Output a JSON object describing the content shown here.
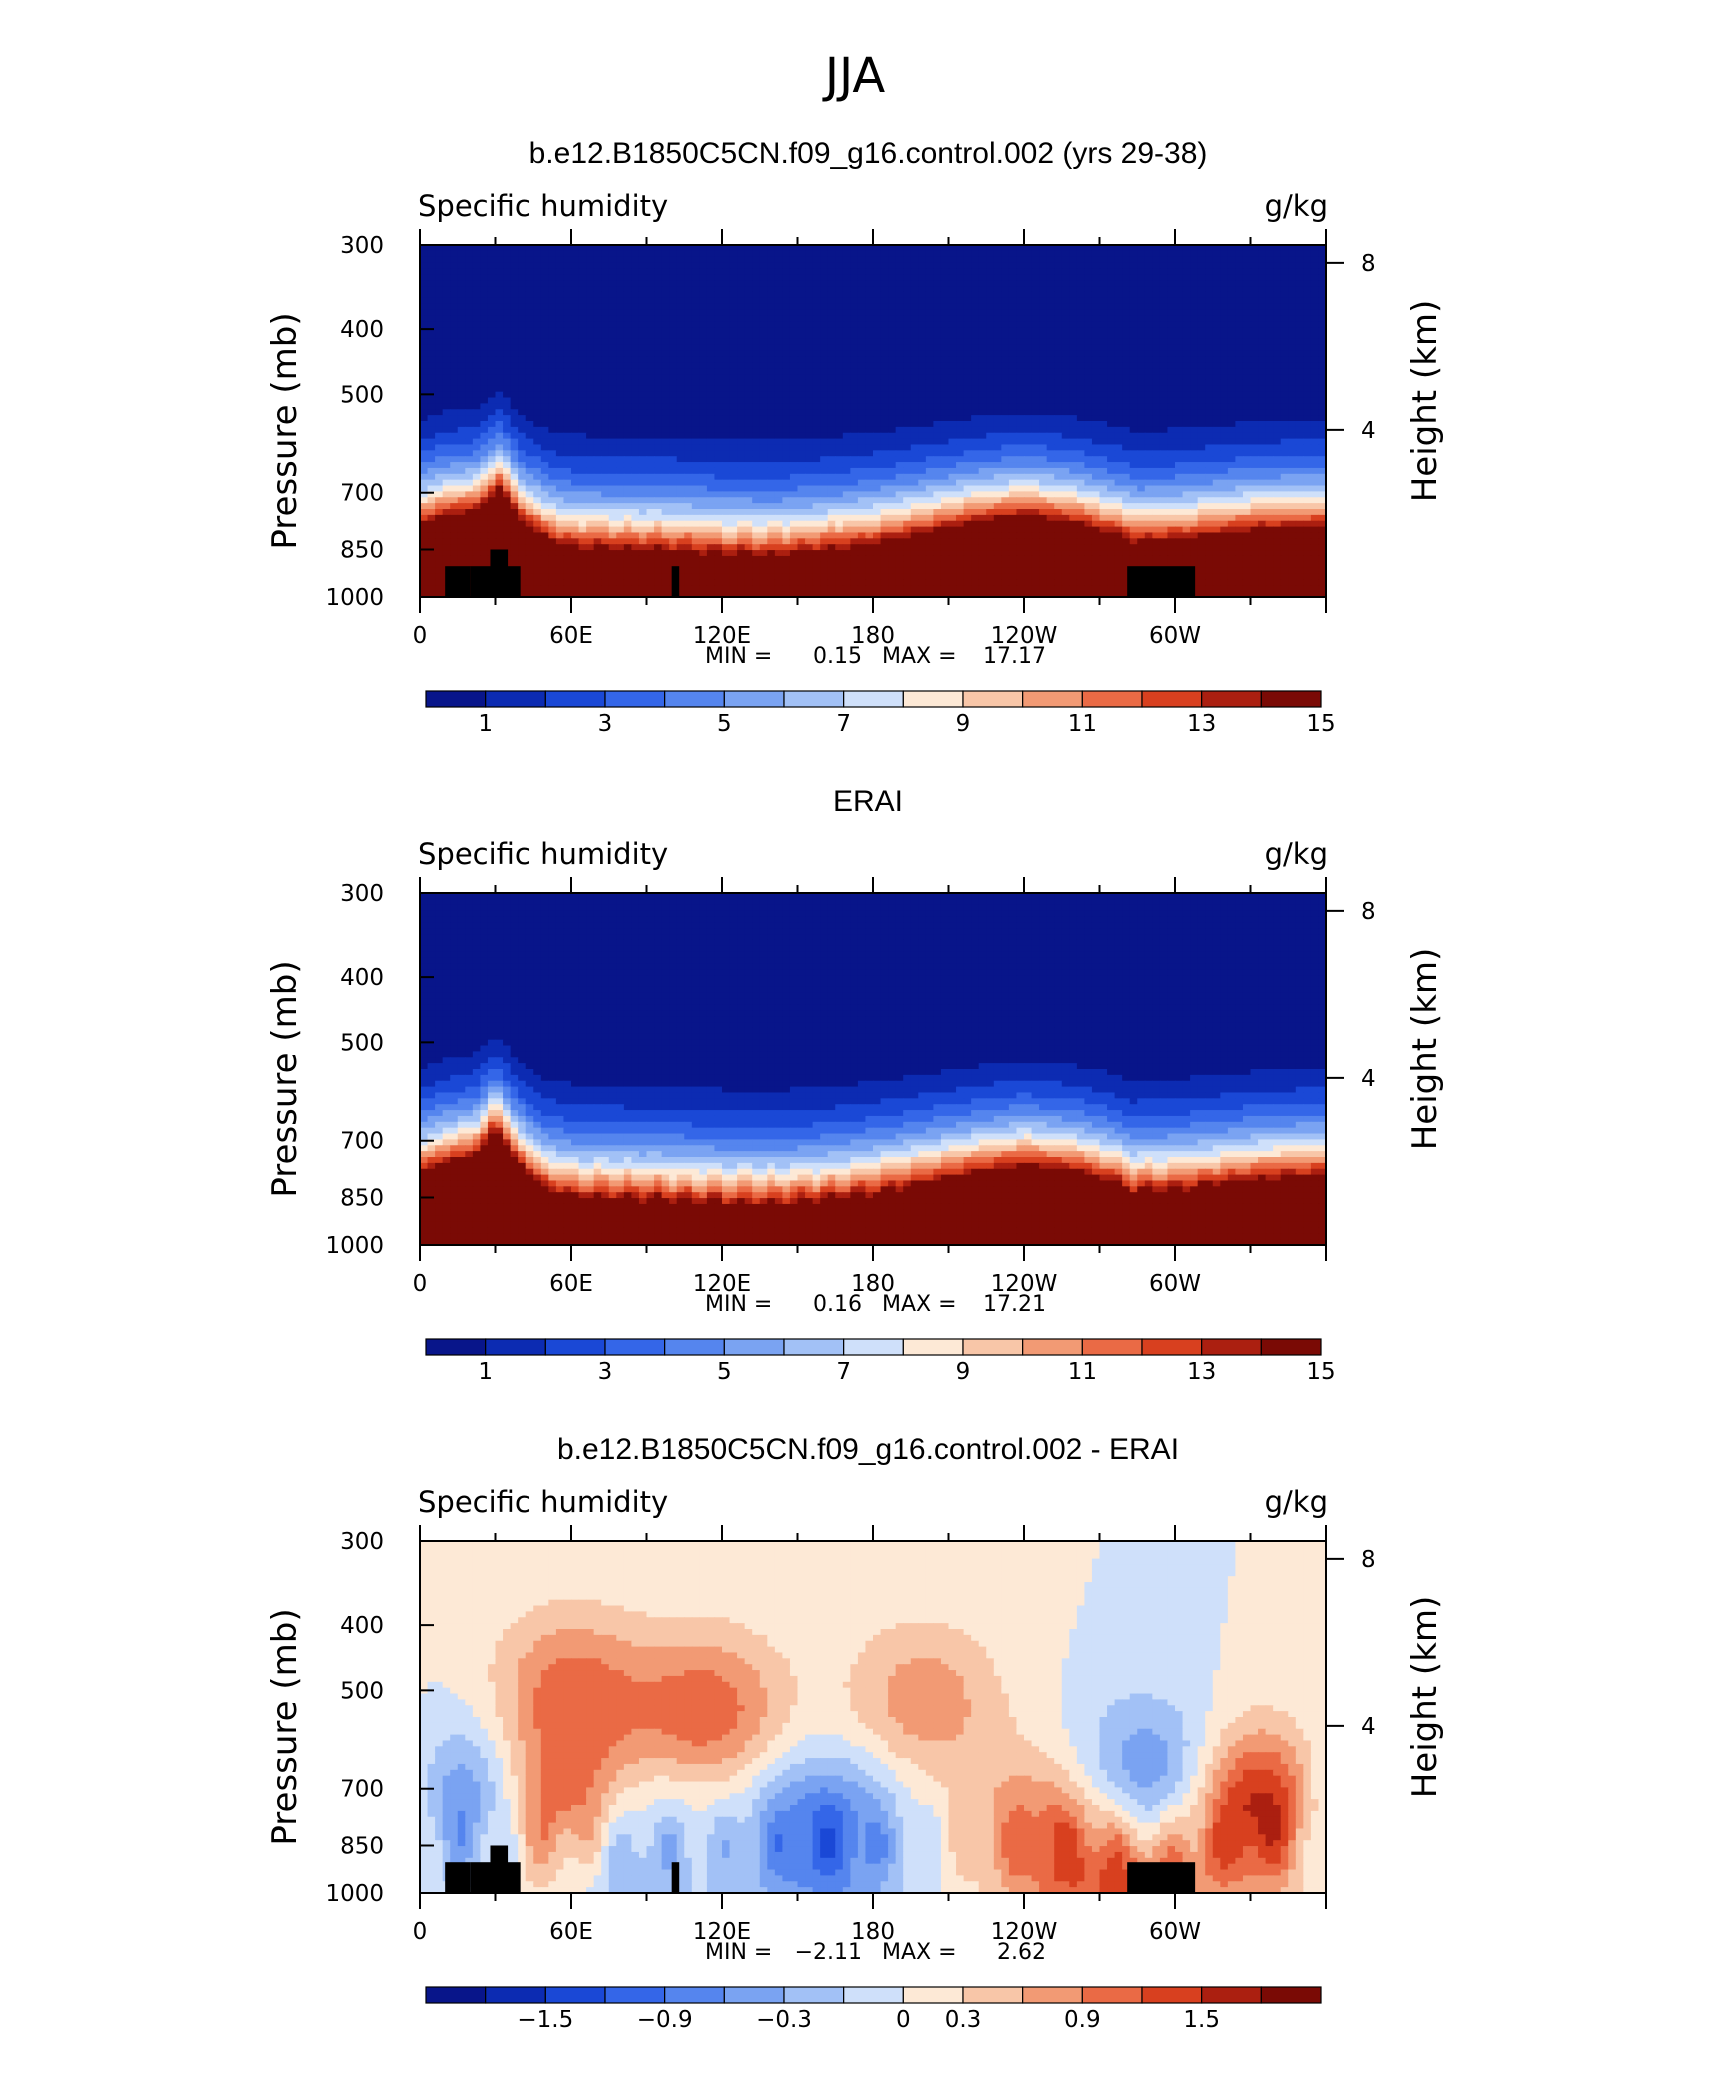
{
  "page_title": "JJA",
  "colorbar_palette": [
    "#08158a",
    "#0c2bb2",
    "#1a48d6",
    "#3466e8",
    "#5585ee",
    "#7aa3f2",
    "#a2c1f6",
    "#cfe0fa",
    "#fde9d6",
    "#f8c6a8",
    "#f29a74",
    "#ea6a45",
    "#d8401f",
    "#ab1f10",
    "#7a0a05"
  ],
  "panels": [
    {
      "title": "b.e12.B1850C5CN.f09_g16.control.002 (yrs 29-38)",
      "left_label": "Specific humidity",
      "right_label": "g/kg",
      "y_axis_label": "Pressure (mb)",
      "y2_axis_label": "Height (km)",
      "stats": {
        "min_label": "MIN =",
        "min": "0.15",
        "max_label": "MAX =",
        "max": "17.17"
      },
      "colorbar_labels": [
        "1",
        "3",
        "5",
        "7",
        "9",
        "11",
        "13",
        "15"
      ]
    },
    {
      "title": "ERAI",
      "left_label": "Specific humidity",
      "right_label": "g/kg",
      "y_axis_label": "Pressure (mb)",
      "y2_axis_label": "Height (km)",
      "stats": {
        "min_label": "MIN =",
        "min": "0.16",
        "max_label": "MAX =",
        "max": "17.21"
      },
      "colorbar_labels": [
        "1",
        "3",
        "5",
        "7",
        "9",
        "11",
        "13",
        "15"
      ]
    },
    {
      "title": "b.e12.B1850C5CN.f09_g16.control.002 - ERAI",
      "left_label": "Specific humidity",
      "right_label": "g/kg",
      "y_axis_label": "Pressure (mb)",
      "y2_axis_label": "Height (km)",
      "stats": {
        "min_label": "MIN =",
        "min": "−2.11",
        "max_label": "MAX =",
        "max": "2.62"
      },
      "colorbar_labels": [
        "−1.5",
        "−0.9",
        "−0.3",
        "0",
        "0.3",
        "0.9",
        "1.5"
      ]
    }
  ],
  "chart_data": [
    {
      "type": "heatmap",
      "title": "b.e12.B1850C5CN.f09_g16.control.002 (yrs 29-38)",
      "variable": "Specific humidity",
      "units": "g/kg",
      "ylabel": "Pressure (mb)",
      "y2label": "Height (km)",
      "x_ticks": [
        "0",
        "60E",
        "120E",
        "180",
        "120W",
        "60W"
      ],
      "x_tick_values": [
        0,
        60,
        120,
        180,
        240,
        300
      ],
      "xlim": [
        0,
        360
      ],
      "y_ticks": [
        300,
        400,
        500,
        700,
        850,
        1000
      ],
      "y2_ticks": [
        8,
        4
      ],
      "ylim": [
        1000,
        300
      ],
      "color_levels": [
        0,
        1,
        2,
        3,
        4,
        5,
        6,
        7,
        8,
        9,
        10,
        11,
        12,
        13,
        14,
        15,
        16
      ],
      "min": 0.15,
      "max": 17.17,
      "terrain_masks": [
        [
          10,
          20,
          1000,
          900
        ],
        [
          28,
          35,
          1000,
          850
        ],
        [
          20,
          40,
          1000,
          900
        ],
        [
          100,
          103,
          1000,
          900
        ],
        [
          281,
          308,
          1000,
          900
        ]
      ],
      "longitude_profile": [
        [
          0,
          800
        ],
        [
          10,
          770
        ],
        [
          22,
          760
        ],
        [
          32,
          700
        ],
        [
          40,
          780
        ],
        [
          50,
          835
        ],
        [
          60,
          860
        ],
        [
          80,
          865
        ],
        [
          100,
          870
        ],
        [
          120,
          880
        ],
        [
          140,
          885
        ],
        [
          160,
          870
        ],
        [
          180,
          850
        ],
        [
          200,
          820
        ],
        [
          220,
          790
        ],
        [
          240,
          770
        ],
        [
          260,
          790
        ],
        [
          275,
          820
        ],
        [
          285,
          845
        ],
        [
          295,
          840
        ],
        [
          310,
          830
        ],
        [
          330,
          810
        ],
        [
          360,
          800
        ]
      ]
    },
    {
      "type": "heatmap",
      "title": "ERAI",
      "variable": "Specific humidity",
      "units": "g/kg",
      "ylabel": "Pressure (mb)",
      "y2label": "Height (km)",
      "x_ticks": [
        "0",
        "60E",
        "120E",
        "180",
        "120W",
        "60W"
      ],
      "x_tick_values": [
        0,
        60,
        120,
        180,
        240,
        300
      ],
      "xlim": [
        0,
        360
      ],
      "y_ticks": [
        300,
        400,
        500,
        700,
        850,
        1000
      ],
      "y2_ticks": [
        8,
        4
      ],
      "ylim": [
        1000,
        300
      ],
      "color_levels": [
        0,
        1,
        2,
        3,
        4,
        5,
        6,
        7,
        8,
        9,
        10,
        11,
        12,
        13,
        14,
        15,
        16
      ],
      "min": 0.16,
      "max": 17.21,
      "longitude_profile": [
        [
          0,
          800
        ],
        [
          10,
          770
        ],
        [
          22,
          750
        ],
        [
          30,
          680
        ],
        [
          38,
          760
        ],
        [
          48,
          835
        ],
        [
          60,
          865
        ],
        [
          80,
          870
        ],
        [
          100,
          875
        ],
        [
          120,
          885
        ],
        [
          140,
          890
        ],
        [
          160,
          875
        ],
        [
          180,
          855
        ],
        [
          200,
          825
        ],
        [
          220,
          795
        ],
        [
          240,
          775
        ],
        [
          260,
          790
        ],
        [
          275,
          820
        ],
        [
          283,
          850
        ],
        [
          295,
          845
        ],
        [
          310,
          835
        ],
        [
          330,
          815
        ],
        [
          360,
          800
        ]
      ]
    },
    {
      "type": "heatmap",
      "title": "b.e12.B1850C5CN.f09_g16.control.002 - ERAI",
      "variable": "Specific humidity",
      "units": "g/kg",
      "ylabel": "Pressure (mb)",
      "y2label": "Height (km)",
      "x_ticks": [
        "0",
        "60E",
        "120E",
        "180",
        "120W",
        "60W"
      ],
      "x_tick_values": [
        0,
        60,
        120,
        180,
        240,
        300
      ],
      "xlim": [
        0,
        360
      ],
      "y_ticks": [
        300,
        400,
        500,
        700,
        850,
        1000
      ],
      "y2_ticks": [
        8,
        4
      ],
      "ylim": [
        1000,
        300
      ],
      "color_levels": [
        -2.1,
        -1.8,
        -1.5,
        -1.2,
        -0.9,
        -0.6,
        -0.3,
        0,
        0.3,
        0.6,
        0.9,
        1.2,
        1.5,
        1.8,
        2.1
      ],
      "min": -2.11,
      "max": 2.62,
      "terrain_masks": [
        [
          10,
          20,
          1000,
          900
        ],
        [
          28,
          35,
          1000,
          850
        ],
        [
          20,
          40,
          1000,
          900
        ],
        [
          100,
          103,
          1000,
          900
        ],
        [
          281,
          308,
          1000,
          900
        ]
      ],
      "anomaly_centers": [
        {
          "lon": 15,
          "p": 750,
          "value": -1.5
        },
        {
          "lon": 55,
          "p": 770,
          "value": 1.6
        },
        {
          "lon": 60,
          "p": 500,
          "value": 1.0
        },
        {
          "lon": 80,
          "p": 850,
          "value": -1.0
        },
        {
          "lon": 115,
          "p": 540,
          "value": 1.1
        },
        {
          "lon": 160,
          "p": 830,
          "value": -1.4
        },
        {
          "lon": 200,
          "p": 520,
          "value": 0.8
        },
        {
          "lon": 250,
          "p": 820,
          "value": 1.1
        },
        {
          "lon": 290,
          "p": 700,
          "value": -1.3
        },
        {
          "lon": 335,
          "p": 750,
          "value": 2.0
        },
        {
          "lon": 285,
          "p": 950,
          "value": 1.2
        }
      ]
    }
  ]
}
